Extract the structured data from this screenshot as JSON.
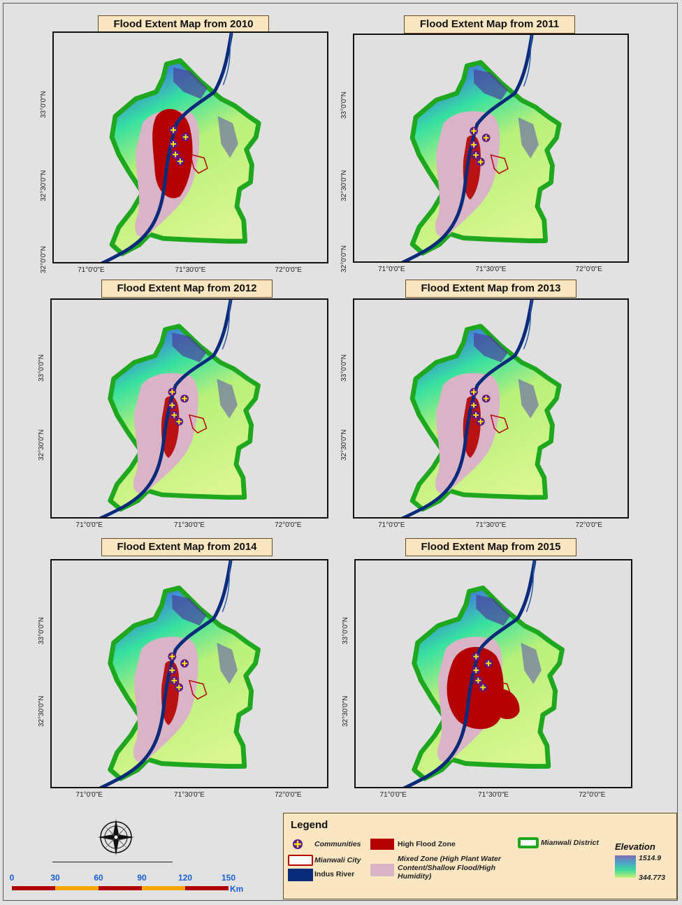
{
  "maps": [
    {
      "title": "Flood Extent Map from 2010",
      "flood": "medium"
    },
    {
      "title": "Flood Extent Map from 2011",
      "flood": "low"
    },
    {
      "title": "Flood Extent Map from 2012",
      "flood": "low"
    },
    {
      "title": "Flood Extent Map from 2013",
      "flood": "low"
    },
    {
      "title": "Flood Extent Map from 2014",
      "flood": "low"
    },
    {
      "title": "Flood Extent Map from 2015",
      "flood": "high"
    }
  ],
  "axes": {
    "lat_labels": [
      "33°0'0\"N",
      "32°30'0\"N",
      "32°0'0\"N"
    ],
    "lon_labels": [
      "71°0'0\"E",
      "71°30'0\"E",
      "72°0'0\"E"
    ]
  },
  "legend": {
    "title": "Legend",
    "communities": "Communities",
    "high_flood": "High Flood Zone",
    "district": "Mianwali District",
    "elevation_title": "Elevation",
    "city": "Mianwali City",
    "mixed_zone": "Mixed Zone (High Plant Water Content/Shallow Flood/High Humidity)",
    "river": "Indus River",
    "elev_max": "1514.9",
    "elev_min": "344.773"
  },
  "scale_bar": {
    "ticks": [
      "0",
      "30",
      "60",
      "90",
      "120",
      "150"
    ],
    "unit": "Km"
  },
  "colors": {
    "flood_red": "#b40000",
    "mixed_pink": "#d9b3c6",
    "river_blue": "#0a2a7a",
    "district_green": "#1fa81f",
    "title_bg": "#fbe6c2",
    "scale_red": "#b00000",
    "scale_orange": "#f5a800"
  }
}
